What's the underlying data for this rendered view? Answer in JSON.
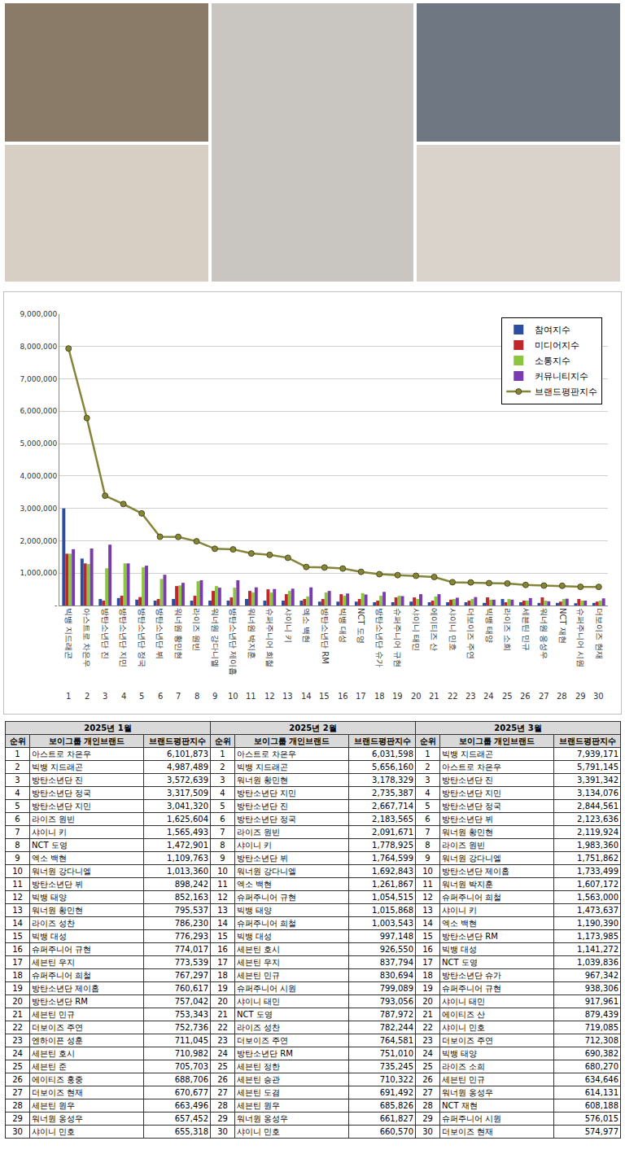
{
  "chart_data": {
    "type": "bar",
    "categories": [
      "빅뱅 지드래곤",
      "아스트로 차은우",
      "방탄소년단 진",
      "방탄소년단 지민",
      "방탄소년단 정국",
      "방탄소년단 뷔",
      "워너원 황민현",
      "라이즈 원빈",
      "워너원 강다니엘",
      "방탄소년단 제이홉",
      "워너원 박지훈",
      "슈퍼주니어 희철",
      "샤이니 키",
      "엑소 백현",
      "방탄소년단 RM",
      "빅뱅 대성",
      "NCT 도영",
      "방탄소년단 슈가",
      "슈퍼주니어 규현",
      "샤이니 태민",
      "에이티즈 산",
      "샤이니 민호",
      "더보이즈 주연",
      "빅뱅 태양",
      "라이즈 소희",
      "세븐틴 민규",
      "워너원 옹성우",
      "NCT 재현",
      "슈퍼주니어 시원",
      "더보이즈 현재"
    ],
    "ranks": [
      1,
      2,
      3,
      4,
      5,
      6,
      7,
      8,
      9,
      10,
      11,
      12,
      13,
      14,
      15,
      16,
      17,
      18,
      19,
      20,
      21,
      22,
      23,
      24,
      25,
      26,
      27,
      28,
      29,
      30
    ],
    "series": [
      {
        "name": "참여지수",
        "color": "#2b4ea2",
        "type": "bar",
        "values": [
          3000000,
          1450000,
          200000,
          230000,
          180000,
          150000,
          200000,
          150000,
          150000,
          150000,
          200000,
          150000,
          150000,
          150000,
          120000,
          120000,
          120000,
          100000,
          100000,
          120000,
          100000,
          100000,
          100000,
          80000,
          200000,
          100000,
          80000,
          80000,
          70000,
          80000
        ]
      },
      {
        "name": "미디어지수",
        "color": "#c0272d",
        "type": "bar",
        "values": [
          1600000,
          1300000,
          150000,
          300000,
          260000,
          200000,
          600000,
          300000,
          450000,
          250000,
          450000,
          500000,
          350000,
          200000,
          200000,
          350000,
          200000,
          150000,
          250000,
          250000,
          150000,
          180000,
          150000,
          250000,
          100000,
          150000,
          250000,
          120000,
          200000,
          120000
        ]
      },
      {
        "name": "소통지수",
        "color": "#8cc63f",
        "type": "bar",
        "values": [
          1600000,
          1280000,
          1150000,
          1300000,
          1180000,
          820000,
          620000,
          750000,
          600000,
          550000,
          400000,
          400000,
          450000,
          280000,
          400000,
          300000,
          380000,
          300000,
          300000,
          200000,
          280000,
          200000,
          200000,
          180000,
          200000,
          150000,
          150000,
          200000,
          150000,
          150000
        ]
      },
      {
        "name": "커뮤니티지수",
        "color": "#7b3bb0",
        "type": "bar",
        "values": [
          1740000,
          1760000,
          1880000,
          1300000,
          1230000,
          950000,
          700000,
          780000,
          550000,
          780000,
          560000,
          510000,
          520000,
          560000,
          450000,
          370000,
          340000,
          420000,
          290000,
          350000,
          350000,
          240000,
          260000,
          180000,
          180000,
          230000,
          130000,
          210000,
          150000,
          220000
        ]
      },
      {
        "name": "브랜드평판지수",
        "color": "#85853a",
        "type": "line",
        "marker": "circle",
        "values": [
          7939171,
          5791145,
          3391342,
          3134076,
          2844561,
          2123636,
          2119924,
          1983360,
          1751862,
          1733499,
          1607172,
          1563000,
          1473637,
          1190390,
          1173985,
          1141272,
          1039836,
          967342,
          938306,
          917961,
          879439,
          719085,
          712308,
          690382,
          680270,
          634646,
          614131,
          608188,
          576015,
          574977
        ]
      }
    ],
    "ylim": [
      0,
      9000000
    ],
    "yticks": [
      {
        "value": 0,
        "label": "-"
      },
      {
        "value": 1000000,
        "label": "1,000,000"
      },
      {
        "value": 2000000,
        "label": "2,000,000"
      },
      {
        "value": 3000000,
        "label": "3,000,000"
      },
      {
        "value": 4000000,
        "label": "4,000,000"
      },
      {
        "value": 5000000,
        "label": "5,000,000"
      },
      {
        "value": 6000000,
        "label": "6,000,000"
      },
      {
        "value": 7000000,
        "label": "7,000,000"
      },
      {
        "value": 8000000,
        "label": "8,000,000"
      },
      {
        "value": 9000000,
        "label": "9,000,000"
      }
    ],
    "grid": true,
    "legend": "upper right"
  },
  "table": {
    "groups": [
      {
        "title": "2025년 1월",
        "columns": [
          "순위",
          "보이그룹 개인브랜드",
          "브랜드평판지수"
        ],
        "rows": [
          [
            1,
            "아스트로 차은우",
            "6,101,873"
          ],
          [
            2,
            "빅뱅 지드래곤",
            "4,987,489"
          ],
          [
            3,
            "방탄소년단 진",
            "3,572,639"
          ],
          [
            4,
            "방탄소년단 정국",
            "3,317,509"
          ],
          [
            5,
            "방탄소년단 지민",
            "3,041,320"
          ],
          [
            6,
            "라이즈 원빈",
            "1,625,604"
          ],
          [
            7,
            "샤이니 키",
            "1,565,493"
          ],
          [
            8,
            "NCT 도영",
            "1,472,901"
          ],
          [
            9,
            "엑소 백현",
            "1,109,763"
          ],
          [
            10,
            "워너원 강다니엘",
            "1,013,360"
          ],
          [
            11,
            "방탄소년단 뷔",
            "898,242"
          ],
          [
            12,
            "빅뱅 태양",
            "852,163"
          ],
          [
            13,
            "워너원 황민현",
            "795,537"
          ],
          [
            14,
            "라이즈 성찬",
            "786,230"
          ],
          [
            15,
            "빅뱅 대성",
            "776,293"
          ],
          [
            16,
            "슈퍼주니어 규현",
            "774,017"
          ],
          [
            17,
            "세븐틴 우지",
            "773,539"
          ],
          [
            18,
            "슈퍼주니어 희철",
            "767,297"
          ],
          [
            19,
            "방탄소년단 제이홉",
            "760,617"
          ],
          [
            20,
            "방탄소년단 RM",
            "757,042"
          ],
          [
            21,
            "세븐틴 민규",
            "753,343"
          ],
          [
            22,
            "더보이즈 주연",
            "752,736"
          ],
          [
            23,
            "엔하이픈 성훈",
            "711,045"
          ],
          [
            24,
            "세븐틴 호시",
            "710,982"
          ],
          [
            25,
            "세븐틴 준",
            "705,703"
          ],
          [
            26,
            "에이티즈 홍중",
            "688,706"
          ],
          [
            27,
            "더보이즈 현재",
            "670,677"
          ],
          [
            28,
            "세븐틴 원우",
            "663,496"
          ],
          [
            29,
            "워너원 옹성우",
            "657,452"
          ],
          [
            30,
            "샤이니 민호",
            "655,318"
          ]
        ]
      },
      {
        "title": "2025년 2월",
        "columns": [
          "순위",
          "보이그룹 개인브랜드",
          "브랜드평판지수"
        ],
        "rows": [
          [
            1,
            "아스트로 차은우",
            "6,031,598"
          ],
          [
            2,
            "빅뱅 지드래곤",
            "5,656,160"
          ],
          [
            3,
            "워너원 황민현",
            "3,178,329"
          ],
          [
            4,
            "방탄소년단 지민",
            "2,735,387"
          ],
          [
            5,
            "방탄소년단 진",
            "2,667,714"
          ],
          [
            6,
            "방탄소년단 정국",
            "2,183,565"
          ],
          [
            7,
            "라이즈 원빈",
            "2,091,671"
          ],
          [
            8,
            "샤이니 키",
            "1,778,925"
          ],
          [
            9,
            "방탄소년단 뷔",
            "1,764,599"
          ],
          [
            10,
            "워너원 강다니엘",
            "1,692,843"
          ],
          [
            11,
            "엑소 백현",
            "1,261,867"
          ],
          [
            12,
            "슈퍼주니어 규현",
            "1,054,515"
          ],
          [
            13,
            "빅뱅 태양",
            "1,015,868"
          ],
          [
            14,
            "슈퍼주니어 희철",
            "1,003,543"
          ],
          [
            15,
            "빅뱅 대성",
            "997,148"
          ],
          [
            16,
            "세븐틴 호시",
            "926,550"
          ],
          [
            17,
            "세븐틴 우지",
            "837,794"
          ],
          [
            18,
            "세븐틴 민규",
            "830,694"
          ],
          [
            19,
            "슈퍼주니어 시원",
            "799,089"
          ],
          [
            20,
            "샤이니 태민",
            "793,056"
          ],
          [
            21,
            "NCT 도영",
            "787,972"
          ],
          [
            22,
            "라이즈 성찬",
            "782,244"
          ],
          [
            23,
            "더보이즈 주연",
            "764,581"
          ],
          [
            24,
            "방탄소년단 RM",
            "751,010"
          ],
          [
            25,
            "세븐틴 정한",
            "735,245"
          ],
          [
            26,
            "세븐틴 승관",
            "710,322"
          ],
          [
            27,
            "세븐틴 도겸",
            "691,492"
          ],
          [
            28,
            "세븐틴 원우",
            "685,826"
          ],
          [
            29,
            "워너원 옹성우",
            "661,827"
          ],
          [
            30,
            "샤이니 민호",
            "660,570"
          ]
        ]
      },
      {
        "title": "2025년 3월",
        "columns": [
          "순위",
          "보이그룹 개인브랜드",
          "브랜드평판지수"
        ],
        "rows": [
          [
            1,
            "빅뱅 지드래곤",
            "7,939,171"
          ],
          [
            2,
            "아스트로 차은우",
            "5,791,145"
          ],
          [
            3,
            "방탄소년단 진",
            "3,391,342"
          ],
          [
            4,
            "방탄소년단 지민",
            "3,134,076"
          ],
          [
            5,
            "방탄소년단 정국",
            "2,844,561"
          ],
          [
            6,
            "방탄소년단 뷔",
            "2,123,636"
          ],
          [
            7,
            "워너원 황민현",
            "2,119,924"
          ],
          [
            8,
            "라이즈 원빈",
            "1,983,360"
          ],
          [
            9,
            "워너원 강다니엘",
            "1,751,862"
          ],
          [
            10,
            "방탄소년단 제이홉",
            "1,733,499"
          ],
          [
            11,
            "워너원 박지훈",
            "1,607,172"
          ],
          [
            12,
            "슈퍼주니어 희철",
            "1,563,000"
          ],
          [
            13,
            "샤이니 키",
            "1,473,637"
          ],
          [
            14,
            "엑소 백현",
            "1,190,390"
          ],
          [
            15,
            "방탄소년단 RM",
            "1,173,985"
          ],
          [
            16,
            "빅뱅 대성",
            "1,141,272"
          ],
          [
            17,
            "NCT 도영",
            "1,039,836"
          ],
          [
            18,
            "방탄소년단 슈가",
            "967,342"
          ],
          [
            19,
            "슈퍼주니어 규현",
            "938,306"
          ],
          [
            20,
            "샤이니 태민",
            "917,961"
          ],
          [
            21,
            "에이티즈 산",
            "879,439"
          ],
          [
            22,
            "샤이니 민호",
            "719,085"
          ],
          [
            23,
            "더보이즈 주연",
            "712,308"
          ],
          [
            24,
            "빅뱅 태양",
            "690,382"
          ],
          [
            25,
            "라이즈 소희",
            "680,270"
          ],
          [
            26,
            "세븐틴 민규",
            "634,646"
          ],
          [
            27,
            "워너원 옹성우",
            "614,131"
          ],
          [
            28,
            "NCT 재현",
            "608,188"
          ],
          [
            29,
            "슈퍼주니어 시원",
            "576,015"
          ],
          [
            30,
            "더보이즈 현재",
            "574,977"
          ]
        ]
      }
    ]
  }
}
